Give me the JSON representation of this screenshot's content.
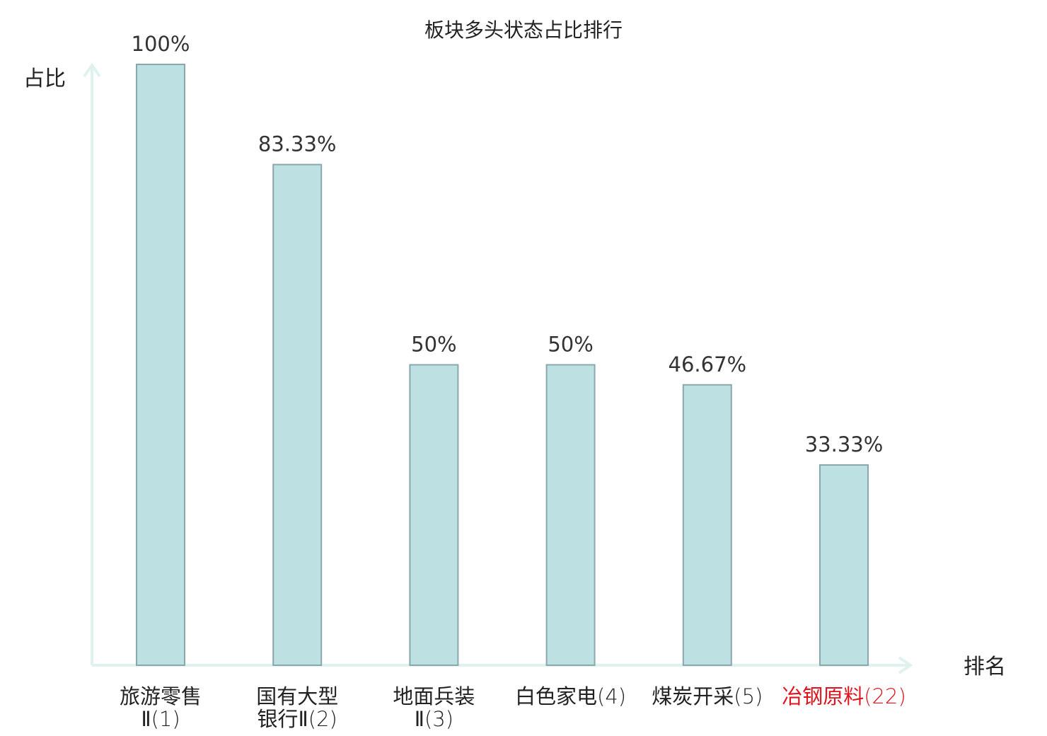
{
  "chart_data": {
    "type": "bar",
    "title": "板块多头状态占比排行",
    "ylabel": "占比",
    "xlabel": "排名",
    "ylim": [
      0,
      100
    ],
    "grid": false,
    "categories": [
      {
        "lines": [
          {
            "name": "旅游零售",
            "rank": ""
          },
          {
            "name": "Ⅱ",
            "rank": "(1)"
          }
        ],
        "highlight": false
      },
      {
        "lines": [
          {
            "name": "国有大型",
            "rank": ""
          },
          {
            "name": "银行Ⅱ",
            "rank": "(2)"
          }
        ],
        "highlight": false
      },
      {
        "lines": [
          {
            "name": "地面兵装",
            "rank": ""
          },
          {
            "name": "Ⅱ",
            "rank": "(3)"
          }
        ],
        "highlight": false
      },
      {
        "lines": [
          {
            "name": "白色家电",
            "rank": "(4)"
          }
        ],
        "highlight": false
      },
      {
        "lines": [
          {
            "name": "煤炭开采",
            "rank": "(5)"
          }
        ],
        "highlight": false
      },
      {
        "lines": [
          {
            "name": "冶钢原料",
            "rank": "(22)"
          }
        ],
        "highlight": true
      }
    ],
    "values": [
      100,
      83.33,
      50,
      50,
      46.67,
      33.33
    ],
    "value_labels": [
      "100%",
      "83.33%",
      "50%",
      "50%",
      "46.67%",
      "33.33%"
    ],
    "colors": {
      "bar_fill": "#bde0e3",
      "bar_stroke": "#8aa8ac",
      "axis": "#dff2ef",
      "text": "#222222",
      "value_text": "#333333",
      "highlight_text": "#e0141e"
    }
  }
}
